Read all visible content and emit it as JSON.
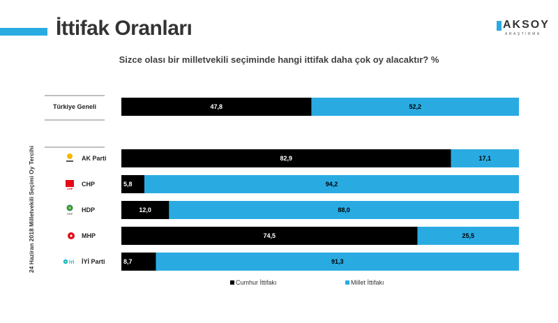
{
  "page": {
    "title": "İttifak Oranları",
    "logo_text": "AKSOY",
    "logo_subtext": "ARAŞTIRMA",
    "question": "Sizce olası bir milletvekili seçiminde hangi ittifak daha çok oy alacaktır? %",
    "side_label": "24 Haziran 2018 Milletvekili Seçimi Oy Tercihi"
  },
  "colors": {
    "cumhur": "#000000",
    "millet": "#29abe2",
    "accent": "#29abe2"
  },
  "chart_data": {
    "type": "bar",
    "orientation": "horizontal",
    "stacked": true,
    "percent_scale": [
      0,
      100
    ],
    "categories": [
      "Türkiye Geneli",
      "AK Parti",
      "CHP",
      "HDP",
      "MHP",
      "İYİ Parti"
    ],
    "category_icons": [
      "",
      "ak-parti-logo-icon",
      "chp-logo-icon",
      "hdp-logo-icon",
      "mhp-logo-icon",
      "iyi-parti-logo-icon"
    ],
    "series": [
      {
        "name": "Cumhur İttifakı",
        "values": [
          47.8,
          82.9,
          5.8,
          12.0,
          74.5,
          8.7
        ],
        "labels": [
          "47,8",
          "82,9",
          "5,8",
          "12,0",
          "74,5",
          "8,7"
        ]
      },
      {
        "name": "Millet İttifakı",
        "values": [
          52.2,
          17.1,
          94.2,
          88.0,
          25.5,
          91.3
        ],
        "labels": [
          "52,2",
          "17,1",
          "94,2",
          "88,0",
          "25,5",
          "91,3"
        ]
      }
    ],
    "legend_position": "bottom"
  }
}
